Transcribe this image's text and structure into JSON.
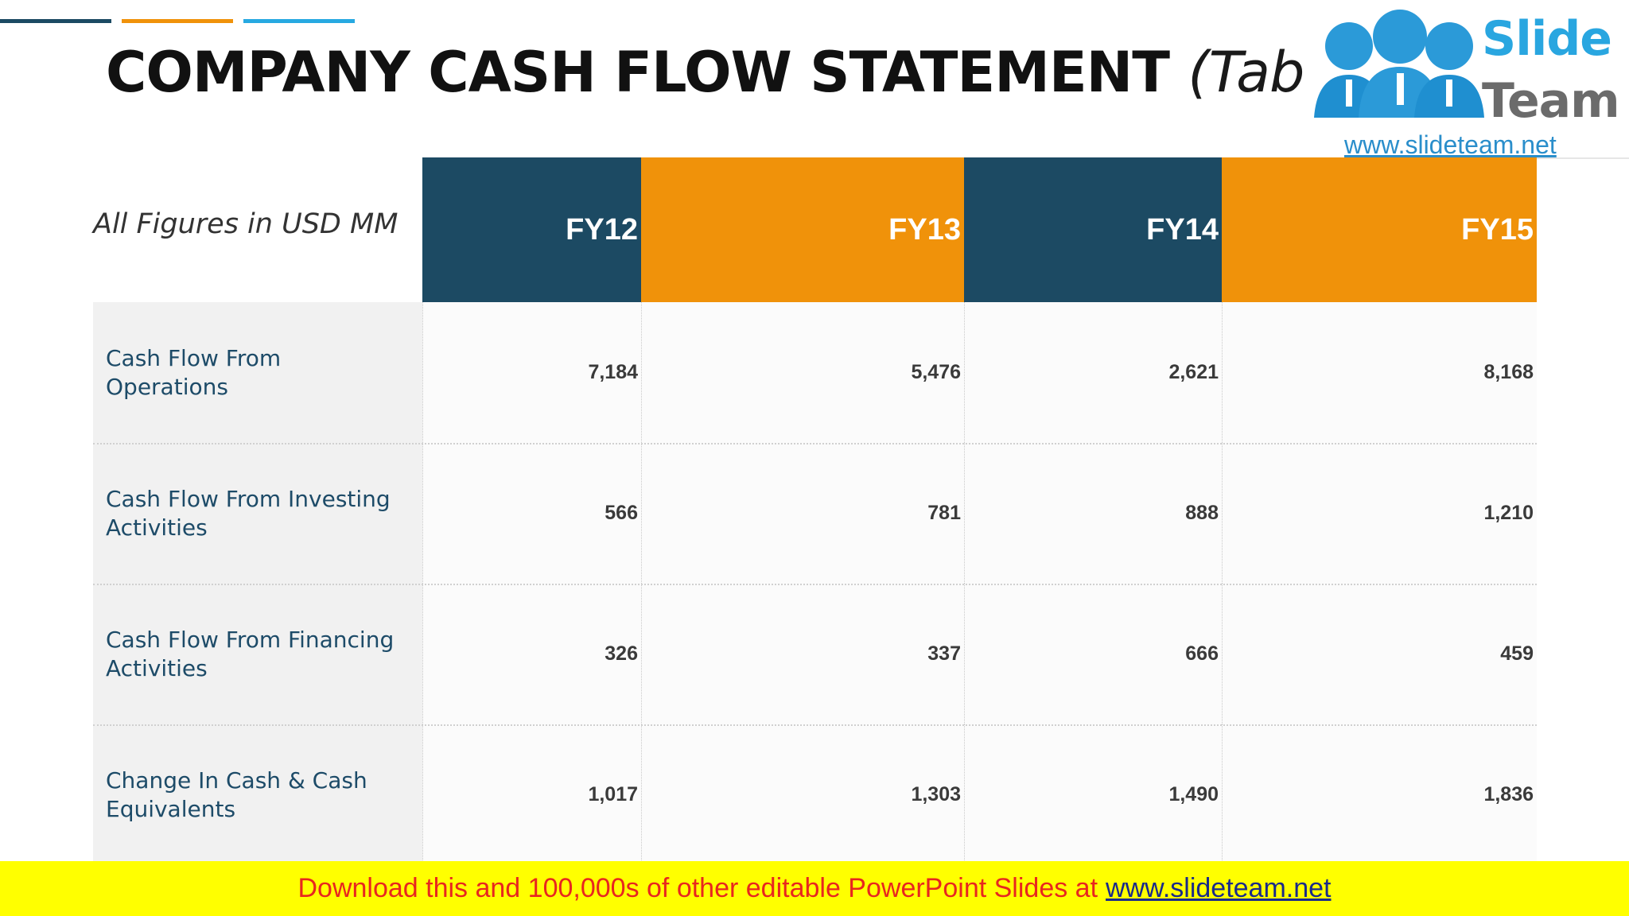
{
  "slide": {
    "title_main": "COMPANY CASH FLOW STATEMENT",
    "title_sub": "(Tabular Form)",
    "units_note": "All Figures in USD MM",
    "colors": {
      "navy": "#1c4a63",
      "orange": "#f0920a",
      "blue": "#27a9e1"
    }
  },
  "logo": {
    "line1": "Slide",
    "line2": "Team",
    "url": "www.slideteam.net",
    "icon": "people-icon"
  },
  "banner": {
    "text": "Download this and 100,000s of other editable PowerPoint Slides at",
    "link": "www.slideteam.net"
  },
  "chart_data": {
    "type": "table",
    "columns": [
      "FY12",
      "FY13",
      "FY14",
      "FY15"
    ],
    "rows": [
      {
        "label": "Cash Flow From Operations",
        "values": [
          "7,184",
          "5,476",
          "2,621",
          "8,168"
        ]
      },
      {
        "label": "Cash Flow From Investing Activities",
        "values": [
          "566",
          "781",
          "888",
          "1,210"
        ]
      },
      {
        "label": "Cash Flow From Financing Activities",
        "values": [
          "326",
          "337",
          "666",
          "459"
        ]
      },
      {
        "label": "Change In Cash & Cash Equivalents",
        "values": [
          "1,017",
          "1,303",
          "1,490",
          "1,836"
        ]
      }
    ]
  }
}
